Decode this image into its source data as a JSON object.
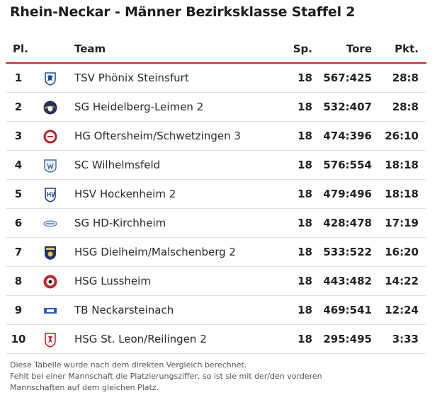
{
  "title": "Rhein-Neckar - Männer Bezirksklasse Staffel 2",
  "headers": {
    "pl": "Pl.",
    "team": "Team",
    "sp": "Sp.",
    "tore": "Tore",
    "pkt": "Pkt."
  },
  "rows": [
    {
      "pl": "1",
      "team": "TSV Phönix Steinsfurt",
      "sp": "18",
      "tore": "567:425",
      "pkt": "28:8",
      "logo": "tsv-steinsfurt-crest-icon"
    },
    {
      "pl": "2",
      "team": "SG Heidelberg-Leimen 2",
      "sp": "18",
      "tore": "532:407",
      "pkt": "28:8",
      "logo": "sg-heidelberg-leimen-crest-icon"
    },
    {
      "pl": "3",
      "team": "HG Oftersheim/Schwetzingen 3",
      "sp": "18",
      "tore": "474:396",
      "pkt": "26:10",
      "logo": "hg-oftersheim-crest-icon"
    },
    {
      "pl": "4",
      "team": "SC Wilhelmsfeld",
      "sp": "18",
      "tore": "576:554",
      "pkt": "18:18",
      "logo": "sc-wilhelmsfeld-crest-icon"
    },
    {
      "pl": "5",
      "team": "HSV Hockenheim 2",
      "sp": "18",
      "tore": "479:496",
      "pkt": "18:18",
      "logo": "hsv-hockenheim-crest-icon"
    },
    {
      "pl": "6",
      "team": "SG HD-Kirchheim",
      "sp": "18",
      "tore": "428:478",
      "pkt": "17:19",
      "logo": "sg-hd-kirchheim-crest-icon"
    },
    {
      "pl": "7",
      "team": "HSG Dielheim/Malschenberg 2",
      "sp": "18",
      "tore": "533:522",
      "pkt": "16:20",
      "logo": "hsg-dielheim-crest-icon"
    },
    {
      "pl": "8",
      "team": "HSG Lussheim",
      "sp": "18",
      "tore": "443:482",
      "pkt": "14:22",
      "logo": "hsg-lussheim-crest-icon"
    },
    {
      "pl": "9",
      "team": "TB Neckarsteinach",
      "sp": "18",
      "tore": "469:541",
      "pkt": "12:24",
      "logo": "tb-neckarsteinach-crest-icon"
    },
    {
      "pl": "10",
      "team": "HSG St. Leon/Reilingen 2",
      "sp": "18",
      "tore": "295:495",
      "pkt": "3:33",
      "logo": "hsg-st-leon-crest-icon"
    }
  ],
  "footnote": {
    "line1": "Diese Tabelle wurde nach dem direkten Vergleich berechnet.",
    "line2": "Fehlt bei einer Mannschaft die Platzierungsziffer, so ist sie mit der/den vorderen",
    "line3": "Mannschaften auf dem gleichen Platz."
  },
  "colors": {
    "accent": "#c8262e",
    "row_divider": "#e2e2e2"
  }
}
